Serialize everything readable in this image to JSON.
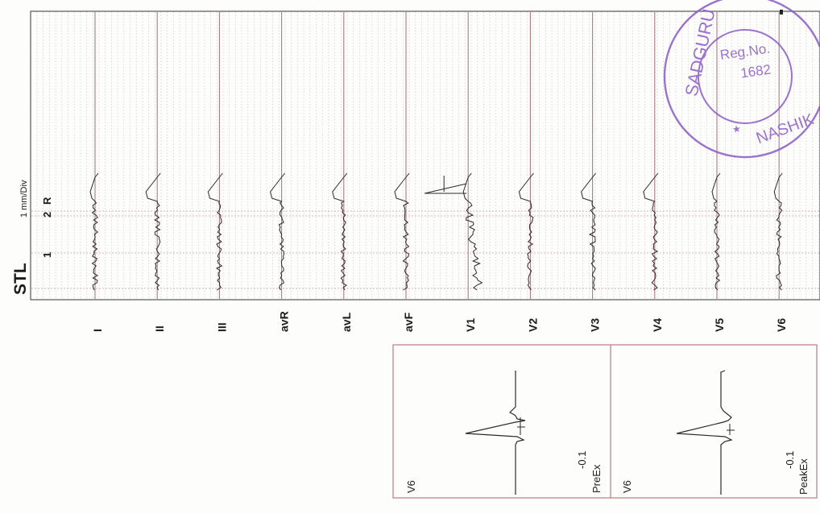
{
  "report": {
    "section_title": "STL",
    "scale_label": "1 mm/Div",
    "scale_ticks": [
      "1",
      "2",
      "R"
    ]
  },
  "strip": {
    "leads": [
      "I",
      "II",
      "III",
      "avR",
      "avL",
      "avF",
      "V1",
      "V2",
      "V3",
      "V4",
      "V5",
      "V6"
    ]
  },
  "complex_panels": [
    {
      "lead": "V6",
      "value": "-0.1",
      "stage": "PreEx"
    },
    {
      "lead": "V6",
      "value": "-0.1",
      "stage": "PeakEx"
    }
  ],
  "stamp": {
    "arc_text": "SADGURU",
    "reg_label": "Reg.No.",
    "reg_number": "1682",
    "city": "NASHIK",
    "star": "★",
    "color": "#8a5cc6"
  },
  "colors": {
    "grid_major": "#b07a80",
    "grid_minor": "#b9b2b4",
    "trace": "#2a2a2a"
  }
}
